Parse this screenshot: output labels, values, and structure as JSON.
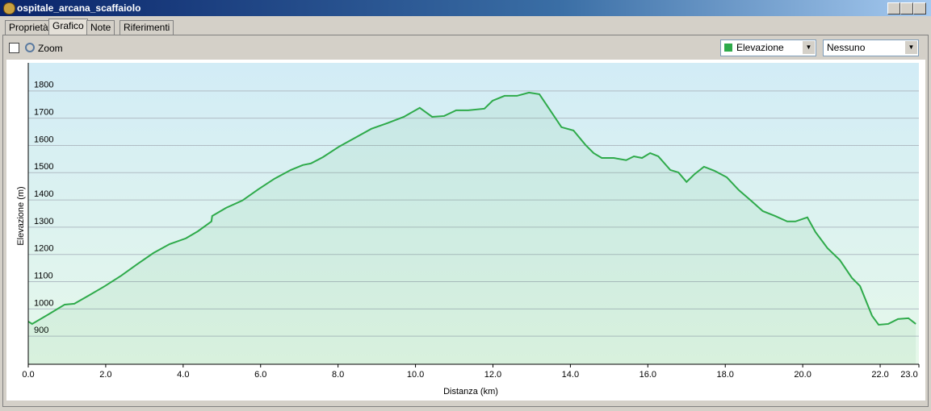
{
  "window": {
    "title": "ospitale_arcana_scaffaiolo",
    "tabs": [
      "Proprietà",
      "Grafico",
      "Note",
      "Riferimenti"
    ],
    "zoom": "Zoom",
    "second_dropdown": "Nessuno"
  },
  "chart_data": {
    "type": "line",
    "xlabel": "Distanza  (km)",
    "ylabel": "Elevazione (m)",
    "grid": true,
    "xlim": [
      0,
      23
    ],
    "ylim": [
      797,
      1903
    ],
    "xticks": [
      {
        "value": 0,
        "label": "0.0"
      },
      {
        "value": 2,
        "label": "2.0"
      },
      {
        "value": 4,
        "label": "4.0"
      },
      {
        "value": 6,
        "label": "6.0"
      },
      {
        "value": 8,
        "label": "8.0"
      },
      {
        "value": 10,
        "label": "10.0"
      },
      {
        "value": 12,
        "label": "12.0"
      },
      {
        "value": 14,
        "label": "14.0"
      },
      {
        "value": 16,
        "label": "16.0"
      },
      {
        "value": 18,
        "label": "18.0"
      },
      {
        "value": 20,
        "label": "20.0"
      },
      {
        "value": 22,
        "label": "22.0"
      },
      {
        "value": 23,
        "label": "23.0"
      }
    ],
    "yticks": [
      900,
      1000,
      1100,
      1200,
      1300,
      1400,
      1500,
      1600,
      1700,
      1800
    ],
    "x": [
      0,
      0.1,
      0.52,
      0.94,
      1.19,
      1.56,
      1.98,
      2.4,
      2.81,
      3.23,
      3.65,
      4.07,
      4.38,
      4.73,
      4.75,
      5.11,
      5.53,
      5.94,
      6.36,
      6.78,
      7.09,
      7.3,
      7.61,
      8.03,
      8.44,
      8.86,
      9.28,
      9.7,
      10.11,
      10.43,
      10.74,
      11.05,
      11.36,
      11.78,
      11.99,
      12.3,
      12.62,
      12.93,
      13.2,
      13.45,
      13.77,
      14.08,
      14.39,
      14.6,
      14.81,
      15.12,
      15.44,
      15.64,
      15.85,
      16.06,
      16.27,
      16.58,
      16.79,
      17.0,
      17.21,
      17.45,
      17.72,
      18.04,
      18.35,
      18.66,
      18.97,
      19.29,
      19.6,
      19.81,
      20.12,
      20.33,
      20.64,
      20.96,
      21.27,
      21.48,
      21.79,
      21.96,
      22.21,
      22.46,
      22.73,
      22.92
    ],
    "series": [
      {
        "name": "Elevazione",
        "color": "#2eaa4a",
        "values": [
          954,
          945,
          980,
          1016,
          1019,
          1049,
          1084,
          1122,
          1164,
          1205,
          1238,
          1259,
          1285,
          1321,
          1341,
          1371,
          1398,
          1439,
          1478,
          1510,
          1528,
          1534,
          1557,
          1596,
          1628,
          1661,
          1682,
          1705,
          1738,
          1705,
          1708,
          1729,
          1729,
          1735,
          1764,
          1782,
          1782,
          1794,
          1788,
          1735,
          1667,
          1655,
          1602,
          1572,
          1554,
          1554,
          1546,
          1560,
          1554,
          1572,
          1560,
          1510,
          1501,
          1466,
          1495,
          1522,
          1507,
          1483,
          1436,
          1398,
          1359,
          1341,
          1321,
          1321,
          1336,
          1282,
          1223,
          1179,
          1114,
          1084,
          975,
          942,
          945,
          963,
          966,
          945
        ]
      }
    ]
  }
}
